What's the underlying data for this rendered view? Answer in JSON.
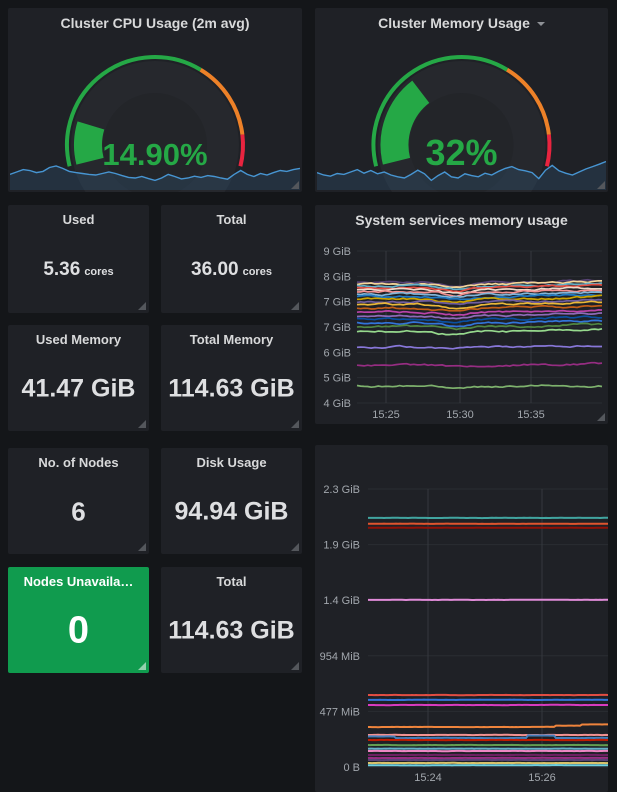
{
  "colors": {
    "page_bg": "#141619",
    "panel_bg": "#1F2126",
    "title_text": "#D8D9DA",
    "value_text": "#DEDFE1",
    "axis_text": "#A2A7AD",
    "grid_line": "#2A2D32",
    "grid_line_vertical": "#35383E",
    "stat_green_bg": "#109B4E",
    "gauge_green": "#25A846",
    "gauge_orange": "#ED8128",
    "gauge_red": "#E8243F",
    "gauge_disc": "#26282D",
    "gauge_inner": "#232529",
    "sparkline_line": "#4795D2",
    "sparkline_fill": "rgba(63,138,197,0.16)"
  },
  "panels": {
    "stats": [
      {
        "id": "used-cores",
        "title": "Used",
        "value": "5.36",
        "unit": "cores"
      },
      {
        "id": "total-cores",
        "title": "Total",
        "value": "36.00",
        "unit": "cores"
      },
      {
        "id": "used-memory",
        "title": "Used Memory",
        "value": "41.47 GiB"
      },
      {
        "id": "total-memory",
        "title": "Total Memory",
        "value": "114.63 GiB"
      },
      {
        "id": "node-count",
        "title": "No. of Nodes",
        "value": "6"
      },
      {
        "id": "disk-usage",
        "title": "Disk Usage",
        "value": "94.94 GiB"
      },
      {
        "id": "nodes-unavailable",
        "title": "Nodes Unavaila…",
        "value": "0"
      },
      {
        "id": "total-memory-2",
        "title": "Total",
        "value": "114.63 GiB"
      }
    ]
  },
  "chart_data": [
    {
      "id": "cluster-cpu-usage",
      "type": "gauge",
      "title": "Cluster CPU Usage (2m avg)",
      "value": 14.9,
      "display": "14.90%",
      "min": 0,
      "max": 100,
      "value_color": "#25A846",
      "thresholds": [
        {
          "from": 0,
          "to": 65,
          "color": "#25A846"
        },
        {
          "from": 65,
          "to": 90,
          "color": "#ED8128"
        },
        {
          "from": 90,
          "to": 100,
          "color": "#E8243F"
        }
      ],
      "sparkline": [
        0.42,
        0.5,
        0.58,
        0.55,
        0.48,
        0.52,
        0.65,
        0.7,
        0.62,
        0.52,
        0.48,
        0.45,
        0.42,
        0.4,
        0.45,
        0.5,
        0.45,
        0.38,
        0.32,
        0.3,
        0.35,
        0.28,
        0.22,
        0.3,
        0.42,
        0.35,
        0.27,
        0.3,
        0.36,
        0.32,
        0.38,
        0.35,
        0.3,
        0.26,
        0.42,
        0.55,
        0.42,
        0.35,
        0.45,
        0.4,
        0.48,
        0.55,
        0.52,
        0.58,
        0.62
      ]
    },
    {
      "id": "cluster-memory-usage",
      "type": "gauge",
      "title": "Cluster Memory Usage",
      "value": 32,
      "display": "32%",
      "min": 0,
      "max": 100,
      "value_color": "#25A846",
      "thresholds": [
        {
          "from": 0,
          "to": 65,
          "color": "#25A846"
        },
        {
          "from": 65,
          "to": 90,
          "color": "#ED8128"
        },
        {
          "from": 90,
          "to": 100,
          "color": "#E8243F"
        }
      ],
      "sparkline": [
        0.48,
        0.4,
        0.36,
        0.45,
        0.42,
        0.5,
        0.58,
        0.46,
        0.55,
        0.44,
        0.5,
        0.4,
        0.34,
        0.3,
        0.42,
        0.56,
        0.44,
        0.22,
        0.38,
        0.5,
        0.34,
        0.3,
        0.44,
        0.38,
        0.34,
        0.46,
        0.4,
        0.52,
        0.62,
        0.68,
        0.58,
        0.54,
        0.48,
        0.28,
        0.56,
        0.72,
        0.54,
        0.46,
        0.4,
        0.5,
        0.6,
        0.68,
        0.76,
        0.85
      ]
    },
    {
      "id": "system-services-memory-usage",
      "type": "line",
      "title": "System services memory usage",
      "yticks": [
        "9 GiB",
        "8 GiB",
        "7 GiB",
        "7 GiB",
        "6 GiB",
        "5 GiB",
        "4 GiB"
      ],
      "ylim_gib": [
        4,
        9
      ],
      "xticks": [
        "15:25",
        "15:30",
        "15:35"
      ],
      "grid": true,
      "series": [
        {
          "level_gib": 7.97,
          "color": "#584477"
        },
        {
          "level_gib": 7.92,
          "color": "#F4D598"
        },
        {
          "level_gib": 7.86,
          "color": "#64B0C8"
        },
        {
          "level_gib": 7.8,
          "color": "#E24D42"
        },
        {
          "level_gib": 7.73,
          "color": "#EFD8C9"
        },
        {
          "level_gib": 7.66,
          "color": "#F29191"
        },
        {
          "level_gib": 7.58,
          "color": "#82B5D8"
        },
        {
          "level_gib": 7.5,
          "color": "#1F78C1"
        },
        {
          "level_gib": 7.42,
          "color": "#CCA300"
        },
        {
          "level_gib": 7.33,
          "color": "#705DA0"
        },
        {
          "level_gib": 7.24,
          "color": "#EAB839"
        },
        {
          "level_gib": 7.12,
          "color": "#C15C17"
        },
        {
          "level_gib": 7.0,
          "color": "#BA43A9"
        },
        {
          "level_gib": 6.87,
          "color": "#8F6AB9"
        },
        {
          "level_gib": 6.76,
          "color": "#0A50A1"
        },
        {
          "level_gib": 6.64,
          "color": "#3274D9"
        },
        {
          "level_gib": 6.52,
          "color": "#508642"
        },
        {
          "level_gib": 6.35,
          "color": "#96D98D"
        },
        {
          "level_gib": 5.85,
          "color": "#8877D9"
        },
        {
          "level_gib": 5.25,
          "color": "#962D82"
        },
        {
          "level_gib": 4.55,
          "color": "#7EB26D"
        }
      ]
    },
    {
      "id": "pods-memory-usage",
      "type": "line",
      "title": "",
      "yticks": [
        "2.3 GiB",
        "1.9 GiB",
        "1.4 GiB",
        "954 MiB",
        "477 MiB",
        "0 B"
      ],
      "ylim_mib": [
        0,
        2623
      ],
      "xticks": [
        "15:24",
        "15:26"
      ],
      "grid": true,
      "series": [
        {
          "level_mib": 2122,
          "color": "#41A5A0"
        },
        {
          "level_mib": 2072,
          "color": "#E0542E"
        },
        {
          "level_mib": 2038,
          "color": "#8F1007"
        },
        {
          "level_mib": 1424,
          "color": "#E08BD8"
        },
        {
          "level_mib": 613,
          "color": "#E24D42"
        },
        {
          "level_mib": 572,
          "color": "#3274D9"
        },
        {
          "level_mib": 528,
          "color": "#D93BC0"
        },
        {
          "level_mib": 341,
          "color": "#EF843C",
          "steps": true
        },
        {
          "level_mib": 273,
          "color": "#F29191"
        },
        {
          "level_mib": 247,
          "color": "#447EBC",
          "steps": true
        },
        {
          "level_mib": 230,
          "color": "#BF1B00"
        },
        {
          "level_mib": 187,
          "color": "#629E51"
        },
        {
          "level_mib": 156,
          "color": "#64B0C8"
        },
        {
          "level_mib": 136,
          "color": "#ED87C3"
        },
        {
          "level_mib": 102,
          "color": "#6D1F62"
        },
        {
          "level_mib": 77,
          "color": "#962D82"
        },
        {
          "level_mib": 60,
          "color": "#584477"
        },
        {
          "level_mib": 34,
          "color": "#D8C36B"
        },
        {
          "level_mib": 15,
          "color": "#6ED0E0"
        }
      ]
    }
  ]
}
